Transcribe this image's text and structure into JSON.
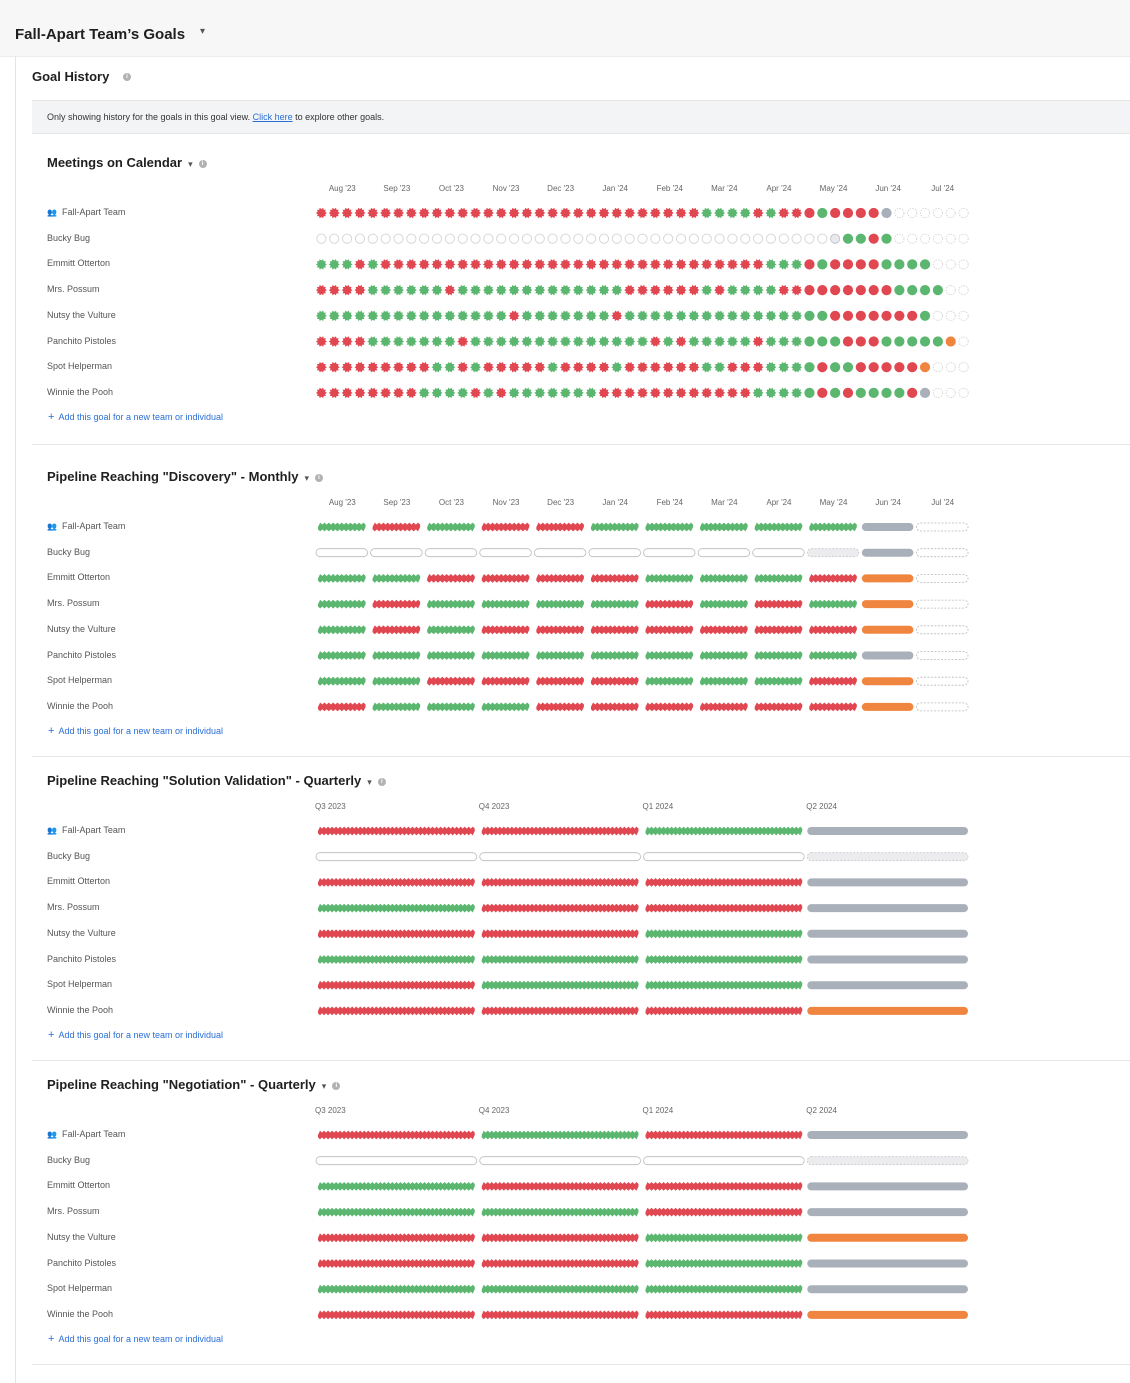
{
  "page": {
    "title": "Fall-Apart Team’s Goals",
    "section_title": "Goal History",
    "notice_before": "Only showing history for the goals in this goal view. ",
    "notice_link": "Click here",
    "notice_after": " to explore other goals.",
    "add_link": "Add this goal for a new team or individual"
  },
  "colors": {
    "red": "#e04750",
    "green": "#5bb66f",
    "gray": "#a9b0ba",
    "orange": "#f08540",
    "empty": "#d3d3d3",
    "accent": "#2a6fd6"
  },
  "people": [
    "Fall-Apart Team",
    "Bucky Bug",
    "Emmitt Otterton",
    "Mrs. Possum",
    "Nutsy the Vulture",
    "Panchito Pistoles",
    "Spot Helperman",
    "Winnie the Pooh"
  ],
  "legend_codes": {
    "R": "missed",
    "G": "met",
    "Y": "in progress",
    "O": "at risk",
    "E": "not started",
    "P": "partial"
  },
  "goals": [
    {
      "title": "Meetings on Calendar",
      "period": "weekly",
      "headers": [
        "Aug '23",
        "Sep '23",
        "Oct '23",
        "Nov '23",
        "Dec '23",
        "Jan '24",
        "Feb '24",
        "Mar '24",
        "Apr '24",
        "May '24",
        "Jun '24",
        "Jul '24"
      ],
      "rows": [
        "RRRRRRRRRRRRRRRRRRRRRRRRRRRRRRGGGGRGRRRGRRRRYEEEEEE",
        "EEEEEEEEEEEEEEEEEEEEEEEEEEEEEEEEEEEEEEEEPGGRGEEEEEE",
        "GGGRGRRRRRRRRRRRRRRRRRRRRRRRRRRRRRRGGGRGRRRRGGGGEEEEEE",
        "RRRRGGGGGGRGGGGGGGGGGGGGRRRRRRGRGGGGRRRRRRRRRGGGGEEEEEE",
        "GGGGGGGGGGGGGGGRGGGGGGGRGGGGGGGGGGGGGGGGRRRRRRRGEEEEEE",
        "RRRRGGGGGGGRGGGGGGGGGGGGGGRGRGGGGGRGGGGGGRRRGGGGGOEEEEEE",
        "RRRRRRRRRGGRGRRRRRGRRRRGRRRRRRGGRRRGGGGRGGRRRRROEEEEEE",
        "RRRRRRRRGGGGRGRGGGGGGGRRRRRRRRRRRRGGGGGRGRGGGGRYEEEEEE"
      ]
    },
    {
      "title": "Pipeline Reaching \"Discovery\" - Monthly",
      "period": "monthly",
      "headers": [
        "Aug '23",
        "Sep '23",
        "Oct '23",
        "Nov '23",
        "Dec '23",
        "Jan '24",
        "Feb '24",
        "Mar '24",
        "Apr '24",
        "May '24",
        "Jun '24",
        "Jul '24"
      ],
      "rows": [
        "GRGRRGGGGGYE",
        "EEEEEEEEEPYE",
        "GGRRRRGGGROE",
        "GRGGGGRGRGOE",
        "GRGRRRRRRROE",
        "GGGGGGGGGGYE",
        "GGRRRRGGGROE",
        "RGGGRRRRRROE"
      ]
    },
    {
      "title": "Pipeline Reaching \"Solution Validation\" - Quarterly",
      "period": "quarterly",
      "headers": [
        "Q3 2023",
        "Q4 2023",
        "Q1 2024",
        "Q2 2024"
      ],
      "rows": [
        "RRGY",
        "EEEP",
        "RRRY",
        "GRRY",
        "RRGY",
        "GGGY",
        "RGGY",
        "RRRO"
      ]
    },
    {
      "title": "Pipeline Reaching \"Negotiation\" - Quarterly",
      "period": "quarterly",
      "headers": [
        "Q3 2023",
        "Q4 2023",
        "Q1 2024",
        "Q2 2024"
      ],
      "rows": [
        "RGRY",
        "EEEP",
        "GRRY",
        "GGRY",
        "RRGO",
        "RRGY",
        "GGGY",
        "RRRO"
      ]
    }
  ]
}
